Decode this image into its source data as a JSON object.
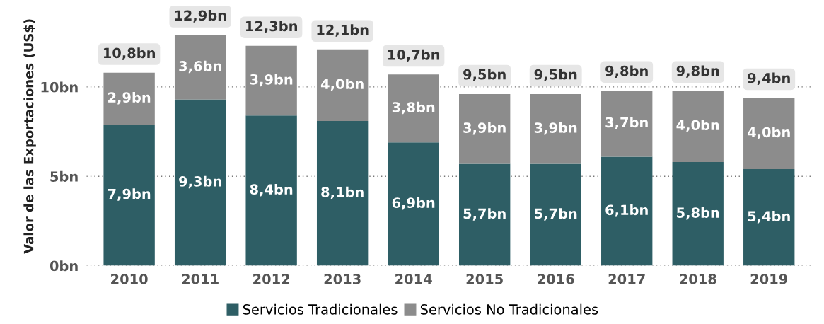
{
  "chart_data": {
    "type": "bar",
    "stacked": true,
    "ylabel": "Valor de las Exportaciones (US$)",
    "categories": [
      "2010",
      "2011",
      "2012",
      "2013",
      "2014",
      "2015",
      "2016",
      "2017",
      "2018",
      "2019"
    ],
    "series": [
      {
        "name": "Servicios Tradicionales",
        "color": "#2e5e65",
        "values": [
          7.9,
          9.3,
          8.4,
          8.1,
          6.9,
          5.7,
          5.7,
          6.1,
          5.8,
          5.4
        ],
        "value_labels": [
          "7,9bn",
          "9,3bn",
          "8,4bn",
          "8,1bn",
          "6,9bn",
          "5,7bn",
          "5,7bn",
          "6,1bn",
          "5,8bn",
          "5,4bn"
        ]
      },
      {
        "name": "Servicios No Tradicionales",
        "color": "#8c8c8c",
        "values": [
          2.9,
          3.6,
          3.9,
          4.0,
          3.8,
          3.9,
          3.9,
          3.7,
          4.0,
          4.0
        ],
        "value_labels": [
          "2,9bn",
          "3,6bn",
          "3,9bn",
          "4,0bn",
          "3,8bn",
          "3,9bn",
          "3,9bn",
          "3,7bn",
          "4,0bn",
          "4,0bn"
        ]
      }
    ],
    "totals": [
      "10,8bn",
      "12,9bn",
      "12,3bn",
      "12,1bn",
      "10,7bn",
      "9,5bn",
      "9,5bn",
      "9,8bn",
      "9,8bn",
      "9,4bn"
    ],
    "ylim": [
      0,
      14.5
    ],
    "yticks": [
      {
        "value": 0,
        "label": "0bn"
      },
      {
        "value": 5,
        "label": "5bn"
      },
      {
        "value": 10,
        "label": "10bn"
      }
    ],
    "grid": "y",
    "legend": "bottom"
  }
}
